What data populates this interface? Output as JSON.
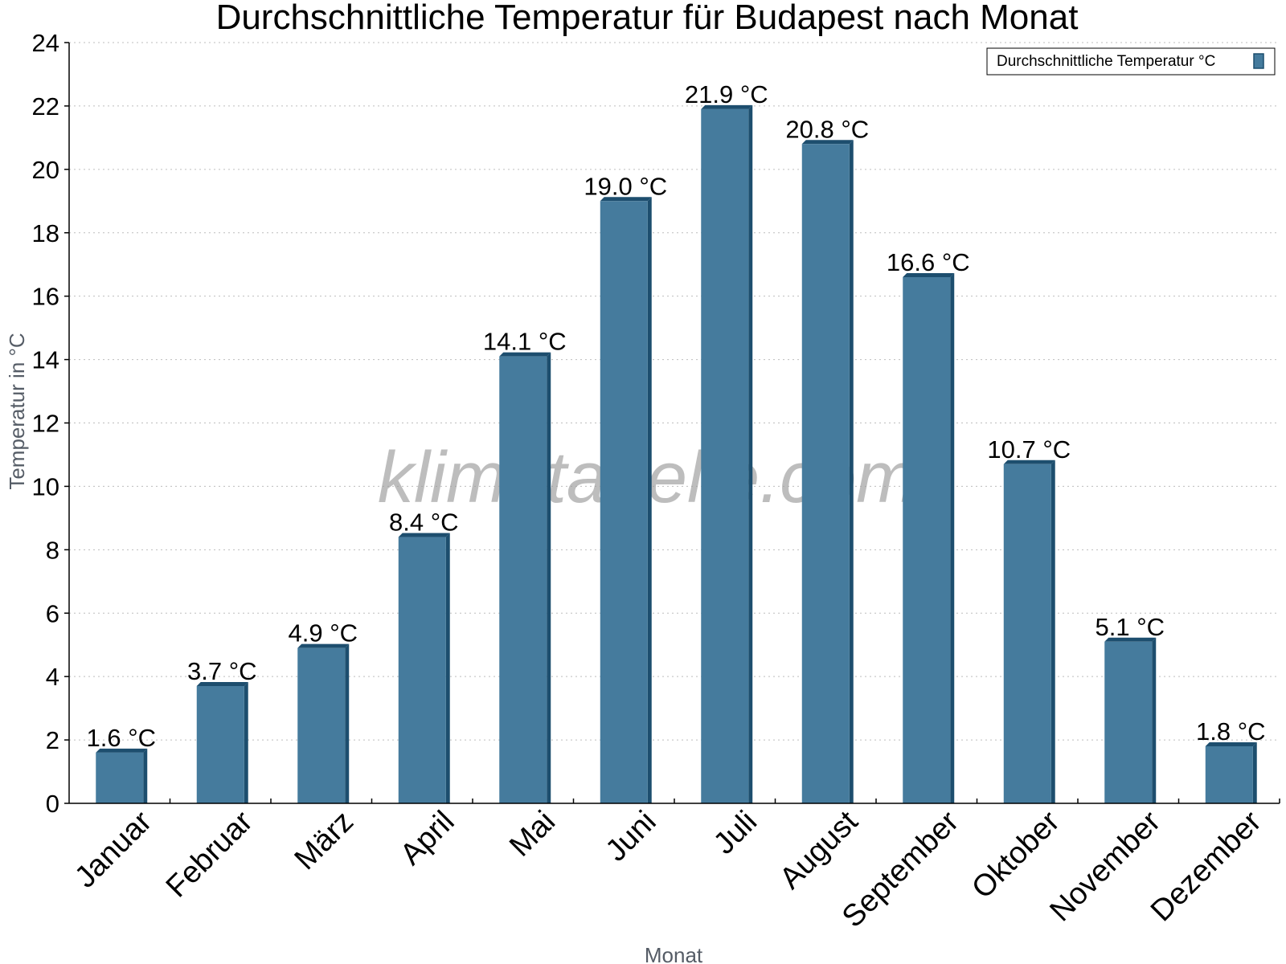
{
  "chart_data": {
    "type": "bar",
    "title": "Durchschnittliche Temperatur für Budapest nach Monat",
    "xlabel": "Monat",
    "ylabel": "Temperatur in °C",
    "ylim": [
      0,
      24
    ],
    "yticks": [
      0,
      2,
      4,
      6,
      8,
      10,
      12,
      14,
      16,
      18,
      20,
      22,
      24
    ],
    "grid": true,
    "legend_position": "top-right",
    "watermark": "klimatabelle.com",
    "bar_color": "#457b9d",
    "bar_dark_color": "#1d4e6e",
    "categories": [
      "Januar",
      "Februar",
      "März",
      "April",
      "Mai",
      "Juni",
      "Juli",
      "August",
      "September",
      "Oktober",
      "November",
      "Dezember"
    ],
    "series": [
      {
        "name": "Durchschnittliche Temperatur °C",
        "values": [
          1.6,
          3.7,
          4.9,
          8.4,
          14.1,
          19.0,
          21.9,
          20.8,
          16.6,
          10.7,
          5.1,
          1.8
        ],
        "labels": [
          "1.6 °C",
          "3.7 °C",
          "4.9 °C",
          "8.4 °C",
          "14.1 °C",
          "19.0 °C",
          "21.9 °C",
          "20.8 °C",
          "16.6 °C",
          "10.7 °C",
          "5.1 °C",
          "1.8 °C"
        ]
      }
    ]
  }
}
